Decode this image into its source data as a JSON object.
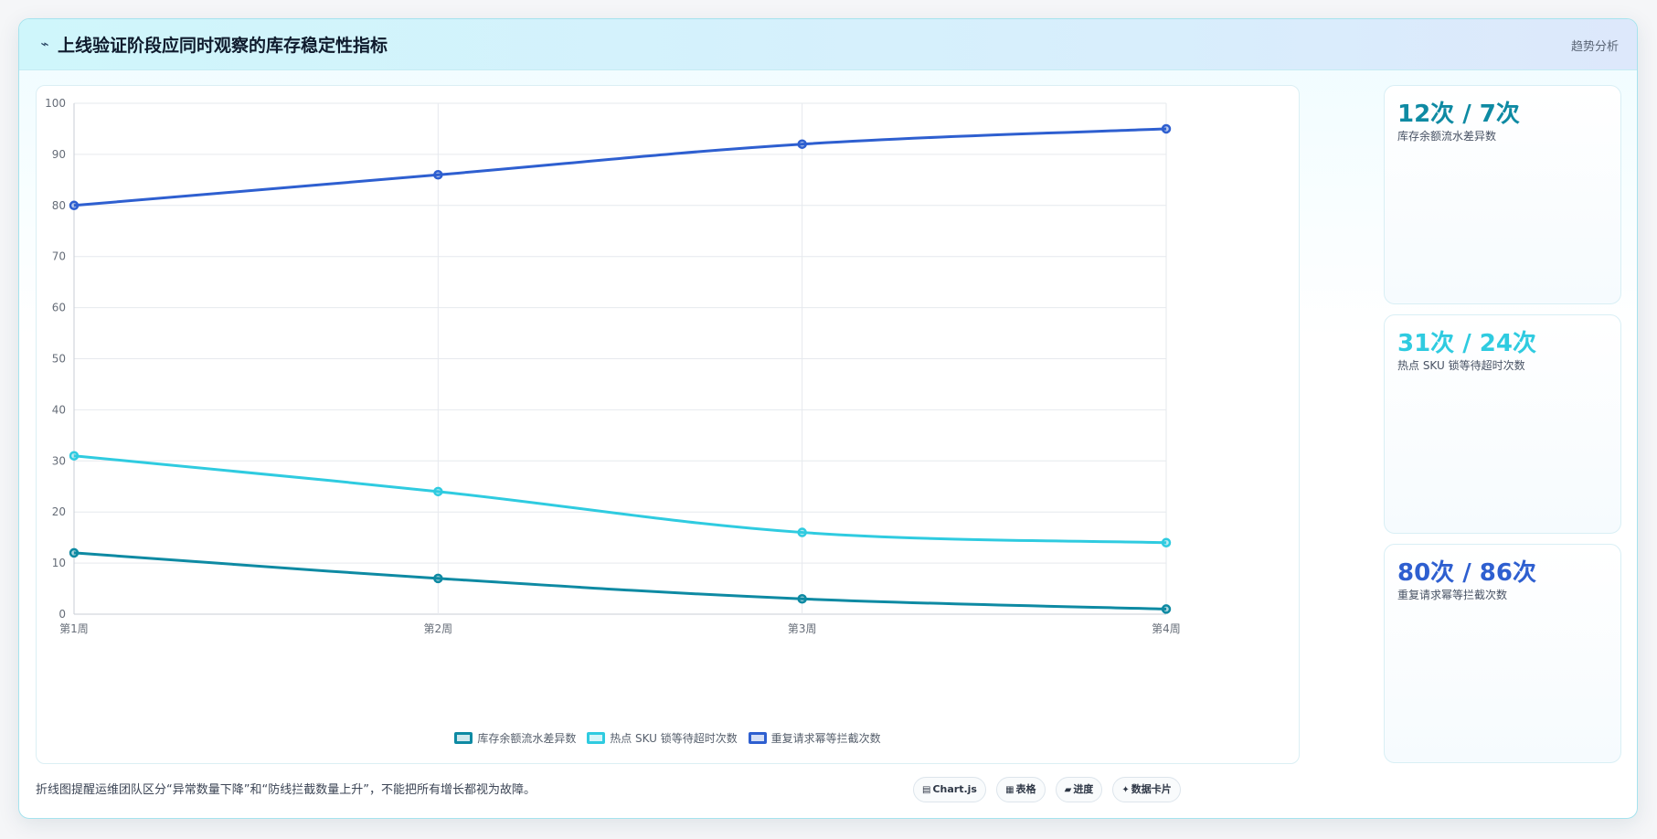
{
  "header": {
    "icon": "sparkline-icon",
    "title": "上线验证阶段应同时观察的库存稳定性指标",
    "tag": "趋势分析"
  },
  "chart_data": {
    "type": "line",
    "categories": [
      "第1周",
      "第2周",
      "第3周",
      "第4周"
    ],
    "ylim": [
      0,
      100
    ],
    "yticks": [
      0,
      10,
      20,
      30,
      40,
      50,
      60,
      70,
      80,
      90,
      100
    ],
    "grid": true,
    "legend_position": "bottom",
    "series": [
      {
        "name": "库存余额流水差异数",
        "values": [
          12,
          7,
          3,
          1
        ],
        "color": "#0e8aa3"
      },
      {
        "name": "热点 SKU 锁等待超时次数",
        "values": [
          31,
          24,
          16,
          14
        ],
        "color": "#2fcbe0"
      },
      {
        "name": "重复请求幂等拦截次数",
        "values": [
          80,
          86,
          92,
          95
        ],
        "color": "#2e5fd0"
      }
    ]
  },
  "stats": [
    {
      "value": "12次 / 7次",
      "label": "库存余额流水差异数",
      "color": "#0e8aa3"
    },
    {
      "value": "31次 / 24次",
      "label": "热点 SKU 锁等待超时次数",
      "color": "#2fcbe0"
    },
    {
      "value": "80次 / 86次",
      "label": "重复请求幂等拦截次数",
      "color": "#2e5fd0"
    }
  ],
  "footer": {
    "note": "折线图提醒运维团队区分“异常数量下降”和“防线拦截数量上升”，不能把所有增长都视为故障。",
    "chips": [
      {
        "icon": "▤",
        "label": "Chart.js"
      },
      {
        "icon": "▦",
        "label": "表格"
      },
      {
        "icon": "▰",
        "label": "进度"
      },
      {
        "icon": "✦",
        "label": "数据卡片"
      }
    ]
  }
}
